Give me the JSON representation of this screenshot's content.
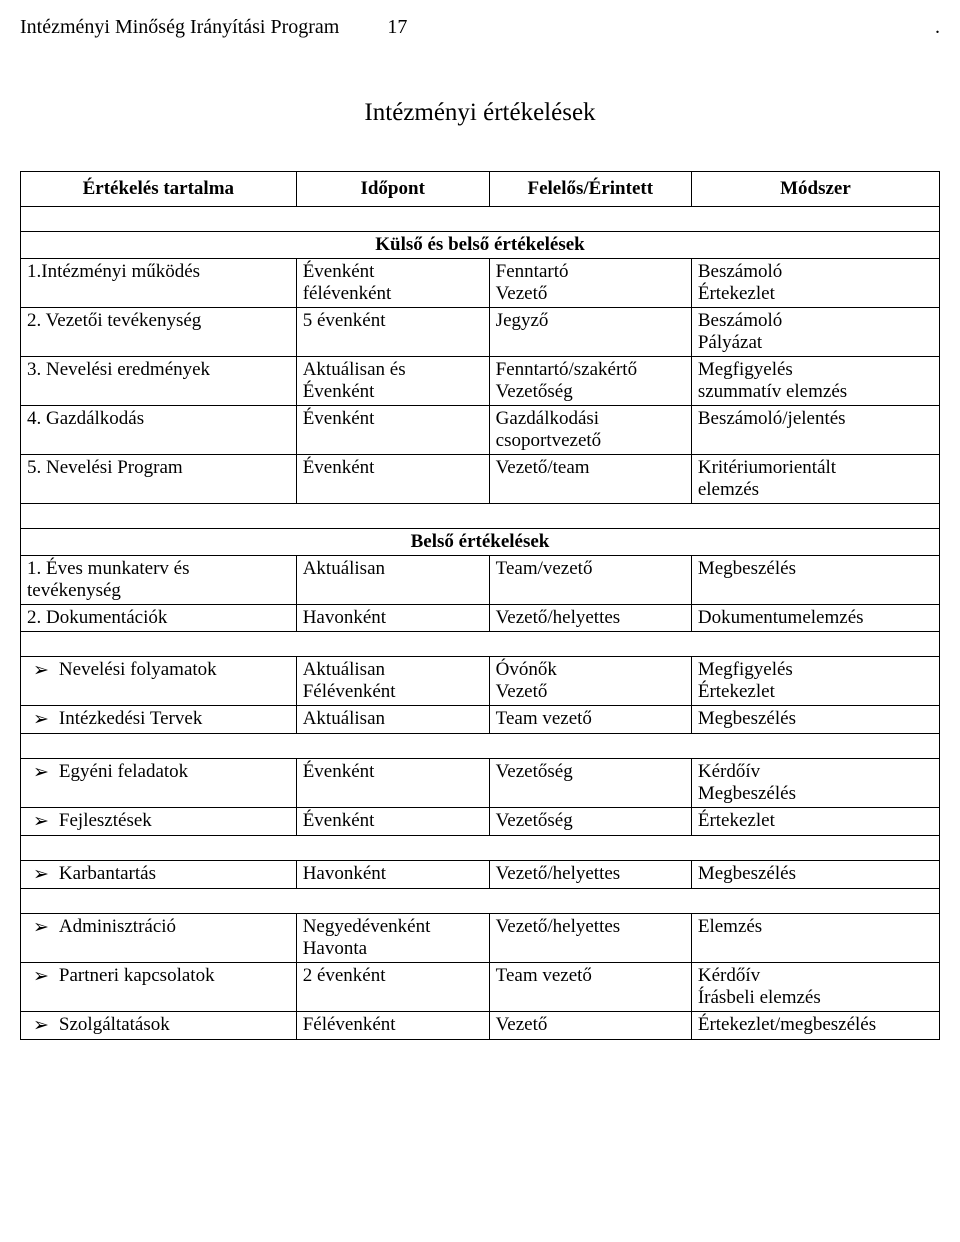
{
  "header": {
    "doc_title": "Intézményi Minőség Irányítási Program",
    "page_number": "17",
    "dot": "."
  },
  "title": "Intézményi értékelések",
  "columns": {
    "c1": "Értékelés tartalma",
    "c2": "Időpont",
    "c3": "Felelős/Érintett",
    "c4": "Módszer"
  },
  "section1": "Külső és belső értékelések",
  "rows1": [
    {
      "a": "1.Intézményi működés",
      "b": "Évenként\nfélévenként",
      "c": "Fenntartó\nVezető",
      "d": "Beszámoló\nÉrtekezlet"
    },
    {
      "a": "2. Vezetői tevékenység",
      "b": "5 évenként",
      "c": "Jegyző",
      "d": "Beszámoló\nPályázat"
    },
    {
      "a": "3. Nevelési eredmények",
      "b": "Aktuálisan és\nÉvenként",
      "c": "Fenntartó/szakértő\nVezetőség",
      "d": "Megfigyelés\nszummatív elemzés"
    },
    {
      "a": "4. Gazdálkodás",
      "b": "Évenként",
      "c": "Gazdálkodási\ncsoportvezető",
      "d": "Beszámoló/jelentés"
    },
    {
      "a": "5. Nevelési Program",
      "b": "Évenként",
      "c": "Vezető/team",
      "d": "Kritériumorientált\nelemzés"
    }
  ],
  "section2": "Belső értékelések",
  "rows2": [
    {
      "a": "1. Éves munkaterv és\ntevékenység",
      "b": "Aktuálisan",
      "c": "Team/vezető",
      "d": "Megbeszélés"
    },
    {
      "a": "2. Dokumentációk",
      "b": "Havonként",
      "c": "Vezető/helyettes",
      "d": "Dokumentumelemzés"
    }
  ],
  "bullet": "➢",
  "groups": [
    [
      {
        "a": "Nevelési folyamatok",
        "b": "Aktuálisan\nFélévenként",
        "c": "Óvónők\nVezető",
        "d": "Megfigyelés\nÉrtekezlet"
      },
      {
        "a": "Intézkedési Tervek",
        "b": "Aktuálisan",
        "c": "Team vezető",
        "d": "Megbeszélés"
      }
    ],
    [
      {
        "a": "Egyéni feladatok",
        "b": "Évenként",
        "c": "Vezetőség",
        "d": "Kérdőív\nMegbeszélés"
      },
      {
        "a": "Fejlesztések",
        "b": "Évenként",
        "c": "Vezetőség",
        "d": "Értekezlet"
      }
    ],
    [
      {
        "a": "Karbantartás",
        "b": "Havonként",
        "c": "Vezető/helyettes",
        "d": "Megbeszélés"
      }
    ],
    [
      {
        "a": "Adminisztráció",
        "b": "Negyedévenként\nHavonta",
        "c": "Vezető/helyettes",
        "d": "Elemzés"
      },
      {
        "a": "Partneri kapcsolatok",
        "b": "2 évenként",
        "c": "Team vezető",
        "d": "Kérdőív\nÍrásbeli elemzés"
      },
      {
        "a": "Szolgáltatások",
        "b": "Félévenként",
        "c": "Vezető",
        "d": "Értekezlet/megbeszélés"
      }
    ]
  ]
}
